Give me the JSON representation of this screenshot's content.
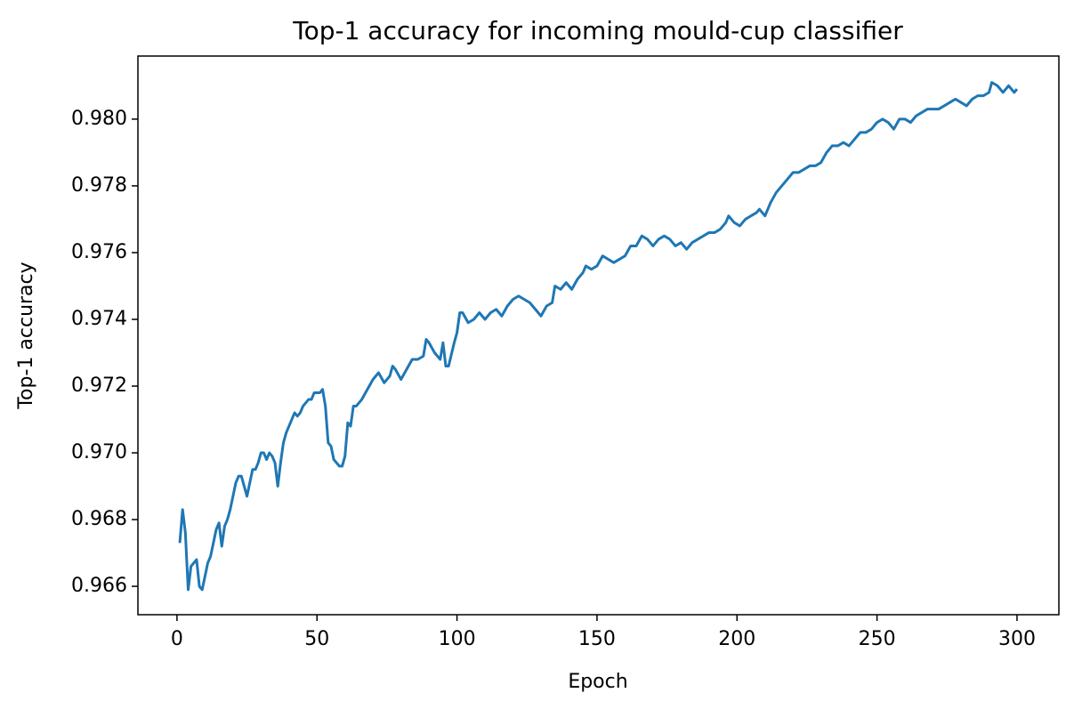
{
  "chart_data": {
    "type": "line",
    "title": "Top-1 accuracy for incoming mould-cup classifier",
    "x_label": "Epoch",
    "y_label": "Top-1 accuracy",
    "x": [
      1,
      2,
      3,
      4,
      5,
      6,
      7,
      8,
      9,
      10,
      11,
      12,
      13,
      14,
      15,
      16,
      17,
      18,
      19,
      20,
      21,
      22,
      23,
      24,
      25,
      26,
      27,
      28,
      29,
      30,
      31,
      32,
      33,
      34,
      35,
      36,
      37,
      38,
      39,
      40,
      41,
      42,
      43,
      44,
      45,
      46,
      47,
      48,
      49,
      50,
      51,
      52,
      53,
      54,
      55,
      56,
      57,
      58,
      59,
      60,
      61,
      62,
      63,
      64,
      66,
      68,
      70,
      72,
      74,
      76,
      77,
      78,
      80,
      82,
      84,
      86,
      88,
      89,
      90,
      92,
      94,
      95,
      96,
      97,
      99,
      100,
      101,
      102,
      104,
      106,
      108,
      110,
      112,
      114,
      116,
      118,
      120,
      122,
      124,
      126,
      128,
      130,
      132,
      134,
      135,
      137,
      139,
      141,
      143,
      145,
      146,
      148,
      150,
      152,
      154,
      156,
      158,
      160,
      162,
      164,
      166,
      168,
      170,
      172,
      174,
      176,
      178,
      180,
      182,
      184,
      186,
      188,
      190,
      192,
      194,
      196,
      197,
      199,
      201,
      203,
      205,
      207,
      208,
      210,
      212,
      214,
      216,
      218,
      220,
      222,
      224,
      226,
      228,
      230,
      232,
      234,
      236,
      238,
      240,
      242,
      244,
      246,
      248,
      250,
      252,
      254,
      256,
      258,
      260,
      262,
      264,
      266,
      268,
      270,
      272,
      274,
      276,
      278,
      280,
      282,
      284,
      286,
      288,
      290,
      291,
      293,
      295,
      297,
      299,
      300
    ],
    "series": [
      {
        "name": "Top-1 accuracy",
        "color": "#1f77b4",
        "values": [
          0.9673,
          0.9683,
          0.9676,
          0.9659,
          0.9666,
          0.9667,
          0.9668,
          0.966,
          0.9659,
          0.9663,
          0.9667,
          0.9669,
          0.9673,
          0.9677,
          0.9679,
          0.9672,
          0.9678,
          0.968,
          0.9683,
          0.9687,
          0.9691,
          0.9693,
          0.9693,
          0.969,
          0.9687,
          0.9691,
          0.9695,
          0.9695,
          0.9697,
          0.97,
          0.97,
          0.9698,
          0.97,
          0.9699,
          0.9697,
          0.969,
          0.9697,
          0.9703,
          0.9706,
          0.9708,
          0.971,
          0.9712,
          0.9711,
          0.9712,
          0.9714,
          0.9715,
          0.9716,
          0.9716,
          0.9718,
          0.9718,
          0.9718,
          0.9719,
          0.9714,
          0.9703,
          0.9702,
          0.9698,
          0.9697,
          0.9696,
          0.9696,
          0.9699,
          0.9709,
          0.9708,
          0.9714,
          0.9714,
          0.9716,
          0.9719,
          0.9722,
          0.9724,
          0.9721,
          0.9723,
          0.9726,
          0.9725,
          0.9722,
          0.9725,
          0.9728,
          0.9728,
          0.9729,
          0.9734,
          0.9733,
          0.973,
          0.9728,
          0.9733,
          0.9726,
          0.9726,
          0.9733,
          0.9736,
          0.9742,
          0.9742,
          0.9739,
          0.974,
          0.9742,
          0.974,
          0.9742,
          0.9743,
          0.9741,
          0.9744,
          0.9746,
          0.9747,
          0.9746,
          0.9745,
          0.9743,
          0.9741,
          0.9744,
          0.9745,
          0.975,
          0.9749,
          0.9751,
          0.9749,
          0.9752,
          0.9754,
          0.9756,
          0.9755,
          0.9756,
          0.9759,
          0.9758,
          0.9757,
          0.9758,
          0.9759,
          0.9762,
          0.9762,
          0.9765,
          0.9764,
          0.9762,
          0.9764,
          0.9765,
          0.9764,
          0.9762,
          0.9763,
          0.9761,
          0.9763,
          0.9764,
          0.9765,
          0.9766,
          0.9766,
          0.9767,
          0.9769,
          0.9771,
          0.9769,
          0.9768,
          0.977,
          0.9771,
          0.9772,
          0.9773,
          0.9771,
          0.9775,
          0.9778,
          0.978,
          0.9782,
          0.9784,
          0.9784,
          0.9785,
          0.9786,
          0.9786,
          0.9787,
          0.979,
          0.9792,
          0.9792,
          0.9793,
          0.9792,
          0.9794,
          0.9796,
          0.9796,
          0.9797,
          0.9799,
          0.98,
          0.9799,
          0.9797,
          0.98,
          0.98,
          0.9799,
          0.9801,
          0.9802,
          0.9803,
          0.9803,
          0.9803,
          0.9804,
          0.9805,
          0.9806,
          0.9805,
          0.9804,
          0.9806,
          0.9807,
          0.9807,
          0.9808,
          0.9811,
          0.981,
          0.9808,
          0.981,
          0.9808,
          0.9809
        ]
      }
    ],
    "xlim": [
      -13.95,
      314.95
    ],
    "xticks": [
      0,
      50,
      100,
      150,
      200,
      250,
      300
    ],
    "ylim": [
      0.96515,
      0.98189
    ],
    "yticks": [
      0.966,
      0.968,
      {
        "value": 0.97,
        "label": "0.970"
      },
      0.972,
      0.974,
      0.976,
      0.978,
      {
        "value": 0.98,
        "label": "0.980"
      }
    ],
    "grid": false
  }
}
